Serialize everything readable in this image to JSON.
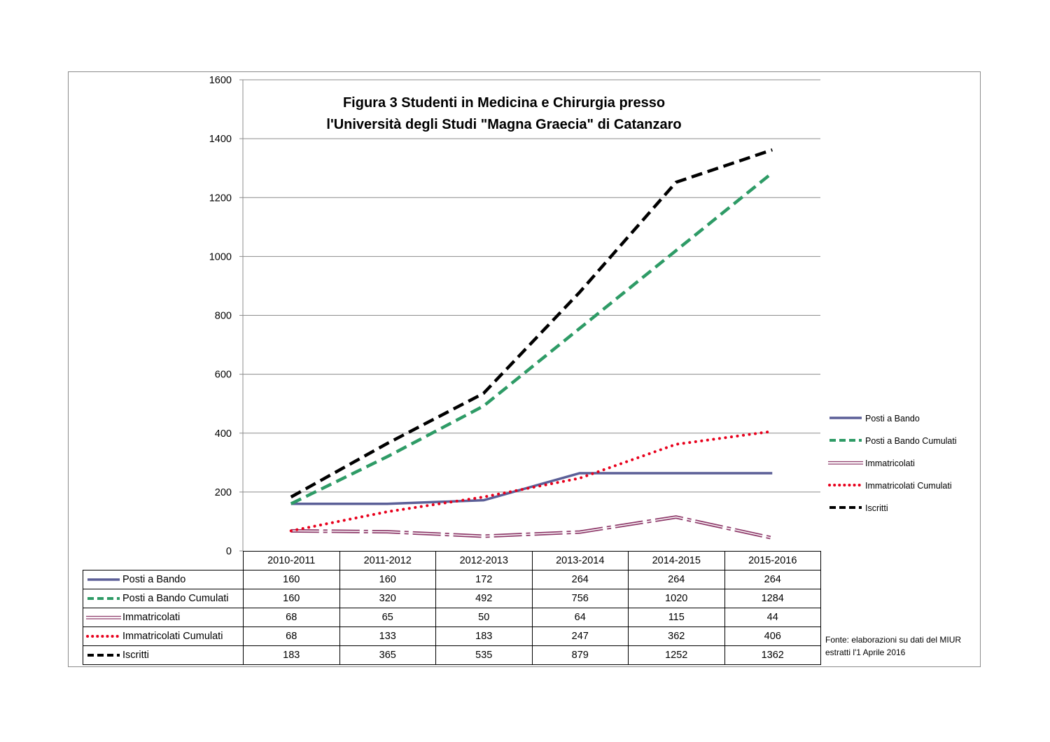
{
  "chart_data": {
    "type": "line",
    "title_lines": [
      "Figura 3 Studenti in Medicina e Chirurgia presso",
      "l'Università degli Studi \"Magna Graecia\" di Catanzaro"
    ],
    "categories": [
      "2010-2011",
      "2011-2012",
      "2012-2013",
      "2013-2014",
      "2014-2015",
      "2015-2016"
    ],
    "ylim": [
      0,
      1600
    ],
    "yticks": [
      0,
      200,
      400,
      600,
      800,
      1000,
      1200,
      1400,
      1600
    ],
    "grid": true,
    "legend_position": "right",
    "series": [
      {
        "name": "Posti a Bando",
        "style": "solid",
        "color": "#5b5f97",
        "values": [
          160,
          160,
          172,
          264,
          264,
          264
        ]
      },
      {
        "name": "Posti a Bando Cumulati",
        "style": "dashed",
        "color": "#2e9b66",
        "values": [
          160,
          320,
          492,
          756,
          1020,
          1284
        ]
      },
      {
        "name": "Immatricolati",
        "style": "double",
        "color": "#8e3a6a",
        "values": [
          68,
          65,
          50,
          64,
          115,
          44
        ]
      },
      {
        "name": "Immatricolati Cumulati",
        "style": "dotted",
        "color": "#e8001c",
        "values": [
          68,
          133,
          183,
          247,
          362,
          406
        ]
      },
      {
        "name": "Iscritti",
        "style": "dashed",
        "color": "#000000",
        "values": [
          183,
          365,
          535,
          879,
          1252,
          1362
        ]
      }
    ],
    "source_note": [
      "Fonte: elaborazioni su dati del MIUR",
      "estratti l'1 Aprile 2016"
    ]
  }
}
